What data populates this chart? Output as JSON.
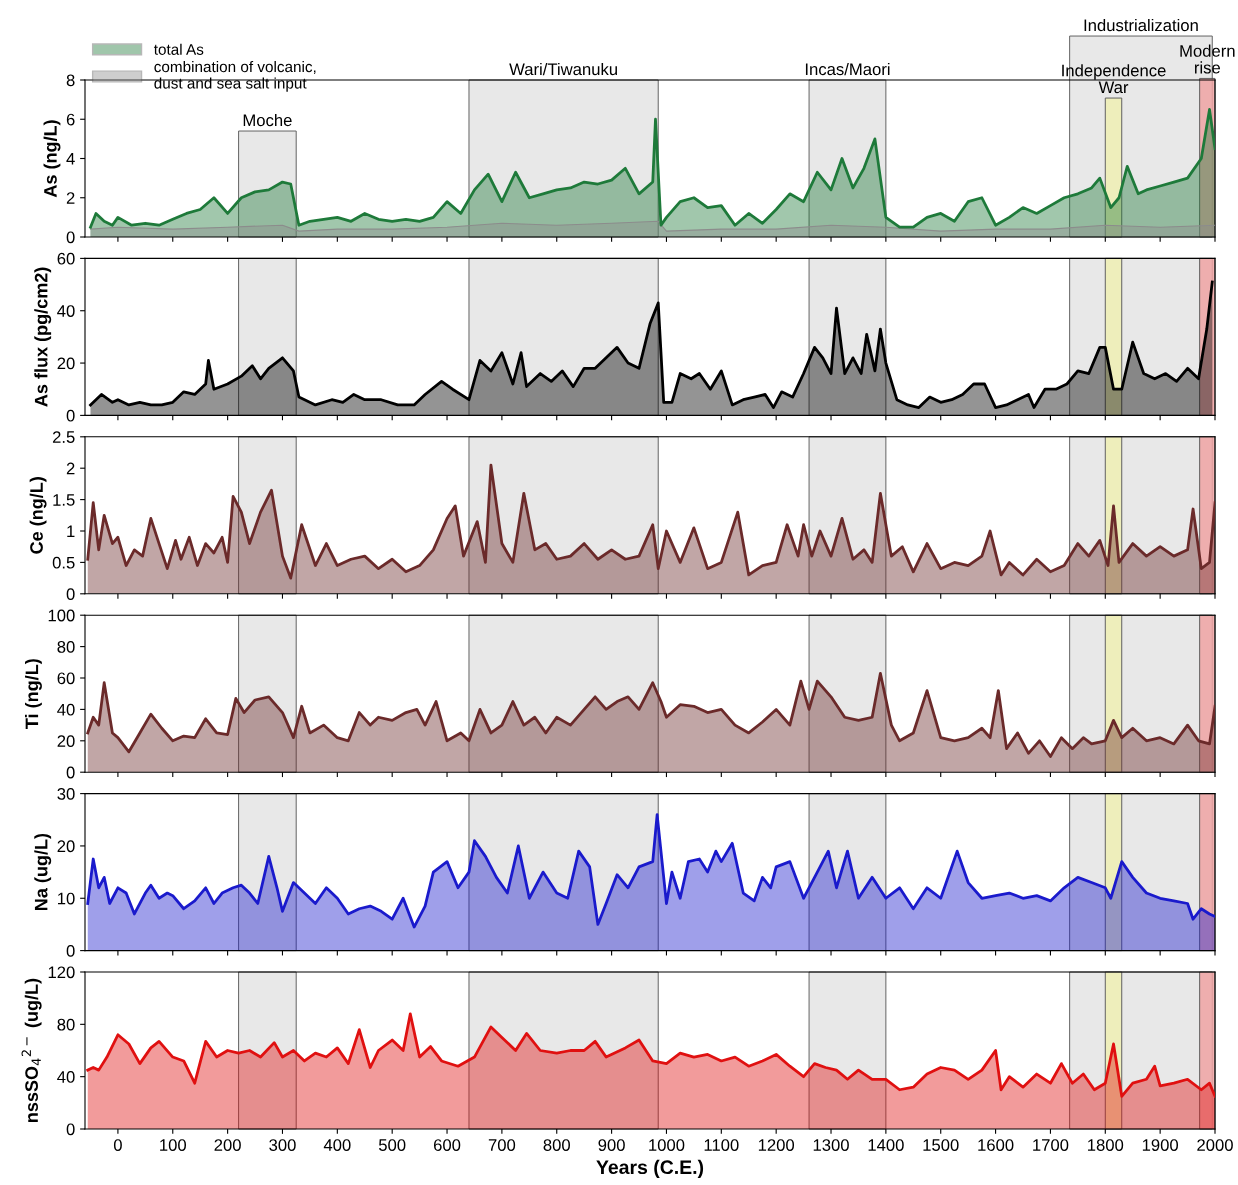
{
  "chart_data": [
    {
      "type": "area",
      "ylabel": "As (ng/L)",
      "xlim": [
        -60,
        2000
      ],
      "xticks": [
        0,
        100,
        200,
        300,
        400,
        500,
        600,
        700,
        800,
        900,
        1000,
        1100,
        1200,
        1300,
        1400,
        1500,
        1600,
        1700,
        1800,
        1900,
        2000
      ],
      "ylim": [
        0,
        8
      ],
      "yticks": [
        0,
        2,
        4,
        6,
        8
      ],
      "tick_labels": "y",
      "legend": "top left",
      "series": [
        {
          "name": "total As",
          "color": "#1e7a3a",
          "x": [
            -50,
            -40,
            -25,
            -10,
            0,
            25,
            50,
            75,
            100,
            125,
            150,
            175,
            200,
            225,
            250,
            275,
            300,
            315,
            330,
            350,
            375,
            400,
            425,
            450,
            475,
            500,
            525,
            550,
            575,
            600,
            625,
            650,
            675,
            700,
            725,
            750,
            775,
            800,
            825,
            850,
            875,
            900,
            925,
            950,
            975,
            980,
            990,
            1000,
            1025,
            1050,
            1075,
            1100,
            1125,
            1150,
            1175,
            1200,
            1225,
            1250,
            1275,
            1300,
            1320,
            1340,
            1360,
            1380,
            1400,
            1425,
            1450,
            1475,
            1500,
            1525,
            1550,
            1575,
            1600,
            1625,
            1650,
            1675,
            1700,
            1725,
            1750,
            1775,
            1790,
            1810,
            1825,
            1840,
            1860,
            1875,
            1900,
            1925,
            1950,
            1975,
            1990,
            2000
          ],
          "values": [
            0.5,
            1.2,
            0.8,
            0.6,
            1.0,
            0.6,
            0.7,
            0.6,
            0.9,
            1.2,
            1.4,
            2.0,
            1.2,
            2.0,
            2.3,
            2.4,
            2.8,
            2.7,
            0.6,
            0.8,
            0.9,
            1.0,
            0.8,
            1.2,
            0.9,
            0.8,
            0.9,
            0.8,
            1.0,
            1.8,
            1.2,
            2.4,
            3.2,
            1.8,
            3.3,
            2.0,
            2.2,
            2.4,
            2.5,
            2.8,
            2.7,
            2.9,
            3.5,
            2.2,
            2.8,
            6.0,
            0.6,
            1.0,
            1.8,
            2.0,
            1.5,
            1.6,
            0.6,
            1.2,
            0.7,
            1.4,
            2.2,
            1.8,
            3.3,
            2.4,
            4.0,
            2.5,
            3.5,
            5.0,
            1.0,
            0.5,
            0.5,
            1.0,
            1.2,
            0.8,
            1.8,
            2.0,
            0.6,
            1.0,
            1.5,
            1.2,
            1.6,
            2.0,
            2.2,
            2.5,
            3.0,
            1.5,
            2.0,
            3.6,
            2.2,
            2.4,
            2.6,
            2.8,
            3.0,
            4.0,
            6.5,
            4.5
          ]
        },
        {
          "name": "combination of volcanic,\ndust and sea salt input",
          "color": "#8c8c8c",
          "x": [
            -50,
            0,
            100,
            200,
            300,
            330,
            400,
            500,
            600,
            700,
            800,
            900,
            985,
            1000,
            1100,
            1200,
            1300,
            1400,
            1500,
            1600,
            1700,
            1800,
            1900,
            2000
          ],
          "values": [
            0.4,
            0.5,
            0.4,
            0.5,
            0.6,
            0.3,
            0.4,
            0.4,
            0.5,
            0.7,
            0.6,
            0.7,
            0.8,
            0.3,
            0.4,
            0.4,
            0.6,
            0.5,
            0.3,
            0.4,
            0.4,
            0.6,
            0.5,
            0.6
          ]
        }
      ],
      "bands": [
        {
          "axis": "x",
          "from": 220,
          "to": 325,
          "label": "Moche",
          "color": "#e4e4e4"
        },
        {
          "axis": "x",
          "from": 640,
          "to": 985,
          "label": "Wari/Tiwanuku",
          "color": "#e4e4e4"
        },
        {
          "axis": "x",
          "from": 1260,
          "to": 1400,
          "label": "Incas/Maori",
          "color": "#e4e4e4"
        },
        {
          "axis": "x",
          "from": 1735,
          "to": 1995,
          "label": "Industrialization",
          "color": "#e4e4e4"
        },
        {
          "axis": "x",
          "from": 1800,
          "to": 1830,
          "label": "Independence\nWar",
          "color": "#f0f0b4"
        },
        {
          "axis": "x",
          "from": 1972,
          "to": 2000,
          "label": "Modern\nrise",
          "color": "#f0a4a4"
        }
      ]
    },
    {
      "type": "area",
      "ylabel": "As flux (pg/cm2)",
      "xlim": [
        -60,
        2000
      ],
      "xticks": [
        0,
        100,
        200,
        300,
        400,
        500,
        600,
        700,
        800,
        900,
        1000,
        1100,
        1200,
        1300,
        1400,
        1500,
        1600,
        1700,
        1800,
        1900,
        2000
      ],
      "ylim": [
        0,
        60
      ],
      "yticks": [
        0,
        20,
        40,
        60
      ],
      "tick_labels": "y",
      "series": [
        {
          "color": "#000000",
          "x": [
            -50,
            -30,
            -10,
            0,
            20,
            40,
            60,
            80,
            100,
            120,
            140,
            160,
            165,
            175,
            200,
            225,
            245,
            260,
            275,
            300,
            320,
            330,
            360,
            390,
            410,
            430,
            450,
            480,
            510,
            540,
            560,
            590,
            610,
            640,
            660,
            680,
            700,
            720,
            735,
            745,
            770,
            790,
            810,
            830,
            850,
            870,
            890,
            910,
            930,
            950,
            970,
            985,
            995,
            1010,
            1025,
            1045,
            1060,
            1080,
            1100,
            1120,
            1140,
            1160,
            1180,
            1195,
            1210,
            1230,
            1250,
            1270,
            1285,
            1300,
            1310,
            1325,
            1340,
            1355,
            1365,
            1380,
            1390,
            1400,
            1420,
            1440,
            1460,
            1480,
            1500,
            1520,
            1540,
            1560,
            1580,
            1600,
            1620,
            1640,
            1660,
            1670,
            1690,
            1710,
            1730,
            1750,
            1770,
            1790,
            1800,
            1815,
            1830,
            1850,
            1870,
            1890,
            1910,
            1930,
            1950,
            1970,
            1985,
            1995
          ],
          "values": [
            4,
            8,
            5,
            6,
            4,
            5,
            4,
            4,
            5,
            9,
            8,
            12,
            21,
            10,
            12,
            15,
            19,
            14,
            18,
            22,
            17,
            7,
            4,
            6,
            5,
            8,
            6,
            6,
            4,
            4,
            8,
            13,
            10,
            6,
            21,
            17,
            24,
            12,
            24,
            11,
            16,
            13,
            17,
            11,
            18,
            18,
            22,
            26,
            20,
            18,
            35,
            43,
            5,
            5,
            16,
            14,
            16,
            10,
            17,
            4,
            6,
            7,
            8,
            3,
            9,
            7,
            16,
            26,
            22,
            16,
            41,
            16,
            22,
            16,
            31,
            17,
            33,
            20,
            6,
            4,
            3,
            7,
            5,
            6,
            8,
            12,
            12,
            3,
            4,
            6,
            8,
            3,
            10,
            10,
            12,
            17,
            16,
            26,
            26,
            10,
            10,
            28,
            16,
            14,
            16,
            13,
            18,
            14,
            33,
            51
          ]
        }
      ],
      "bands": [
        {
          "axis": "x",
          "from": 220,
          "to": 325,
          "color": "#e4e4e4"
        },
        {
          "axis": "x",
          "from": 640,
          "to": 985,
          "color": "#e4e4e4"
        },
        {
          "axis": "x",
          "from": 1260,
          "to": 1400,
          "color": "#e4e4e4"
        },
        {
          "axis": "x",
          "from": 1735,
          "to": 1995,
          "color": "#e4e4e4"
        },
        {
          "axis": "x",
          "from": 1800,
          "to": 1830,
          "color": "#f0f0b4"
        },
        {
          "axis": "x",
          "from": 1972,
          "to": 2000,
          "color": "#f0a4a4"
        }
      ]
    },
    {
      "type": "area",
      "ylabel": "Ce (ng/L)",
      "xlim": [
        -60,
        2000
      ],
      "xticks": [
        0,
        100,
        200,
        300,
        400,
        500,
        600,
        700,
        800,
        900,
        1000,
        1100,
        1200,
        1300,
        1400,
        1500,
        1600,
        1700,
        1800,
        1900,
        2000
      ],
      "ylim": [
        0,
        2.5
      ],
      "yticks": [
        0,
        0.5,
        1,
        1.5,
        2,
        2.5
      ],
      "tick_labels": "y",
      "series": [
        {
          "color": "#6b2a2a",
          "x": [
            -55,
            -45,
            -35,
            -25,
            -10,
            0,
            15,
            30,
            45,
            60,
            75,
            90,
            105,
            115,
            130,
            145,
            160,
            175,
            190,
            200,
            210,
            225,
            240,
            260,
            280,
            300,
            315,
            335,
            360,
            380,
            400,
            425,
            450,
            475,
            500,
            525,
            550,
            575,
            600,
            615,
            630,
            655,
            670,
            680,
            700,
            720,
            740,
            760,
            780,
            800,
            825,
            850,
            875,
            900,
            925,
            950,
            975,
            985,
            1000,
            1025,
            1050,
            1075,
            1100,
            1130,
            1150,
            1175,
            1200,
            1220,
            1240,
            1250,
            1265,
            1280,
            1300,
            1320,
            1340,
            1360,
            1375,
            1390,
            1410,
            1430,
            1450,
            1475,
            1500,
            1525,
            1550,
            1575,
            1590,
            1610,
            1625,
            1650,
            1675,
            1700,
            1725,
            1750,
            1770,
            1790,
            1805,
            1815,
            1825,
            1850,
            1875,
            1900,
            1925,
            1950,
            1960,
            1975,
            1990,
            2000
          ],
          "values": [
            0.55,
            1.45,
            0.7,
            1.25,
            0.8,
            0.9,
            0.45,
            0.7,
            0.6,
            1.2,
            0.8,
            0.4,
            0.85,
            0.55,
            0.9,
            0.45,
            0.8,
            0.65,
            0.9,
            0.5,
            1.55,
            1.3,
            0.8,
            1.3,
            1.65,
            0.6,
            0.25,
            1.1,
            0.45,
            0.8,
            0.45,
            0.55,
            0.6,
            0.4,
            0.55,
            0.35,
            0.45,
            0.7,
            1.2,
            1.4,
            0.6,
            1.15,
            0.5,
            2.05,
            0.8,
            0.5,
            1.6,
            0.7,
            0.8,
            0.55,
            0.6,
            0.8,
            0.55,
            0.7,
            0.55,
            0.6,
            1.1,
            0.4,
            1.0,
            0.5,
            1.05,
            0.4,
            0.5,
            1.3,
            0.3,
            0.45,
            0.5,
            1.1,
            0.6,
            1.1,
            0.6,
            1.0,
            0.6,
            1.2,
            0.55,
            0.7,
            0.5,
            1.6,
            0.6,
            0.75,
            0.35,
            0.8,
            0.4,
            0.5,
            0.45,
            0.6,
            1.0,
            0.3,
            0.5,
            0.3,
            0.55,
            0.35,
            0.45,
            0.8,
            0.6,
            0.85,
            0.45,
            1.4,
            0.5,
            0.8,
            0.6,
            0.75,
            0.6,
            0.7,
            1.35,
            0.4,
            0.5,
            1.45
          ]
        }
      ],
      "bands": [
        {
          "axis": "x",
          "from": 220,
          "to": 325,
          "color": "#e4e4e4"
        },
        {
          "axis": "x",
          "from": 640,
          "to": 985,
          "color": "#e4e4e4"
        },
        {
          "axis": "x",
          "from": 1260,
          "to": 1400,
          "color": "#e4e4e4"
        },
        {
          "axis": "x",
          "from": 1735,
          "to": 1995,
          "color": "#e4e4e4"
        },
        {
          "axis": "x",
          "from": 1800,
          "to": 1830,
          "color": "#f0f0b4"
        },
        {
          "axis": "x",
          "from": 1972,
          "to": 2000,
          "color": "#f0a4a4"
        }
      ]
    },
    {
      "type": "area",
      "ylabel": "Ti (ng/L)",
      "xlim": [
        -60,
        2000
      ],
      "xticks": [
        0,
        100,
        200,
        300,
        400,
        500,
        600,
        700,
        800,
        900,
        1000,
        1100,
        1200,
        1300,
        1400,
        1500,
        1600,
        1700,
        1800,
        1900,
        2000
      ],
      "ylim": [
        0,
        100
      ],
      "yticks": [
        0,
        20,
        40,
        60,
        80,
        100
      ],
      "tick_labels": "y",
      "series": [
        {
          "color": "#6b2a2a",
          "x": [
            -55,
            -45,
            -35,
            -25,
            -10,
            0,
            20,
            40,
            60,
            80,
            100,
            120,
            140,
            160,
            180,
            200,
            215,
            230,
            250,
            275,
            300,
            320,
            335,
            350,
            375,
            400,
            420,
            440,
            460,
            475,
            500,
            525,
            545,
            560,
            580,
            600,
            625,
            640,
            660,
            680,
            700,
            720,
            740,
            760,
            780,
            800,
            825,
            850,
            870,
            890,
            910,
            930,
            950,
            975,
            990,
            1000,
            1025,
            1050,
            1075,
            1100,
            1125,
            1150,
            1175,
            1200,
            1225,
            1245,
            1260,
            1275,
            1300,
            1325,
            1350,
            1375,
            1390,
            1410,
            1425,
            1450,
            1475,
            1500,
            1525,
            1550,
            1575,
            1590,
            1605,
            1620,
            1640,
            1660,
            1680,
            1700,
            1720,
            1740,
            1760,
            1775,
            1800,
            1815,
            1830,
            1850,
            1875,
            1900,
            1925,
            1950,
            1970,
            1990,
            2000
          ],
          "values": [
            25,
            35,
            30,
            57,
            25,
            22,
            13,
            25,
            37,
            28,
            20,
            23,
            22,
            34,
            25,
            24,
            47,
            38,
            46,
            48,
            38,
            22,
            42,
            25,
            30,
            22,
            20,
            38,
            30,
            35,
            33,
            38,
            40,
            30,
            45,
            20,
            25,
            20,
            40,
            25,
            30,
            45,
            30,
            35,
            25,
            35,
            30,
            40,
            48,
            40,
            45,
            48,
            40,
            57,
            45,
            35,
            43,
            42,
            38,
            40,
            30,
            25,
            32,
            40,
            30,
            58,
            40,
            58,
            48,
            35,
            33,
            35,
            63,
            30,
            20,
            25,
            52,
            22,
            20,
            22,
            28,
            22,
            52,
            15,
            25,
            12,
            20,
            10,
            22,
            15,
            22,
            18,
            20,
            33,
            22,
            28,
            20,
            22,
            18,
            30,
            20,
            18,
            42
          ]
        }
      ],
      "bands": [
        {
          "axis": "x",
          "from": 220,
          "to": 325,
          "color": "#e4e4e4"
        },
        {
          "axis": "x",
          "from": 640,
          "to": 985,
          "color": "#e4e4e4"
        },
        {
          "axis": "x",
          "from": 1260,
          "to": 1400,
          "color": "#e4e4e4"
        },
        {
          "axis": "x",
          "from": 1735,
          "to": 1995,
          "color": "#e4e4e4"
        },
        {
          "axis": "x",
          "from": 1800,
          "to": 1830,
          "color": "#f0f0b4"
        },
        {
          "axis": "x",
          "from": 1972,
          "to": 2000,
          "color": "#f0a4a4"
        }
      ]
    },
    {
      "type": "area",
      "ylabel": "Na (ug/L)",
      "xlim": [
        -60,
        2000
      ],
      "xticks": [
        0,
        100,
        200,
        300,
        400,
        500,
        600,
        700,
        800,
        900,
        1000,
        1100,
        1200,
        1300,
        1400,
        1500,
        1600,
        1700,
        1800,
        1900,
        2000
      ],
      "ylim": [
        0,
        30
      ],
      "yticks": [
        0,
        10,
        20,
        30
      ],
      "tick_labels": "y",
      "series": [
        {
          "color": "#1a1acc",
          "x": [
            -55,
            -45,
            -35,
            -25,
            -15,
            0,
            15,
            30,
            50,
            60,
            75,
            90,
            100,
            120,
            140,
            160,
            175,
            190,
            210,
            225,
            240,
            255,
            275,
            290,
            300,
            320,
            340,
            360,
            380,
            400,
            420,
            440,
            460,
            480,
            500,
            520,
            540,
            560,
            575,
            600,
            620,
            640,
            650,
            670,
            690,
            710,
            730,
            750,
            775,
            800,
            820,
            840,
            860,
            875,
            890,
            910,
            930,
            950,
            975,
            983,
            1000,
            1010,
            1025,
            1040,
            1060,
            1075,
            1090,
            1100,
            1120,
            1140,
            1160,
            1175,
            1190,
            1200,
            1225,
            1250,
            1275,
            1295,
            1310,
            1330,
            1350,
            1375,
            1400,
            1425,
            1450,
            1475,
            1500,
            1530,
            1550,
            1575,
            1600,
            1625,
            1650,
            1675,
            1700,
            1725,
            1750,
            1775,
            1800,
            1810,
            1830,
            1850,
            1875,
            1900,
            1925,
            1950,
            1960,
            1975,
            1990,
            2000
          ],
          "values": [
            9,
            17.5,
            12,
            14,
            9,
            12,
            11,
            7,
            11,
            12.5,
            10,
            11,
            10.5,
            8,
            9.5,
            12,
            9,
            11,
            12,
            12.5,
            11,
            9,
            18,
            12,
            7.5,
            13,
            11,
            9,
            12,
            10,
            7,
            8,
            8.5,
            7.5,
            6,
            10,
            4.5,
            8.5,
            15,
            17,
            12,
            15,
            21,
            18,
            14,
            11,
            20,
            10,
            15,
            11,
            10,
            19,
            16,
            5,
            9,
            14.5,
            12,
            16,
            17,
            26,
            9,
            15,
            10,
            17,
            17.5,
            15,
            19,
            17,
            20.5,
            11,
            9.5,
            14,
            12,
            16,
            17,
            10,
            15,
            19,
            12,
            19,
            10,
            14,
            10,
            12,
            8,
            12,
            10,
            19,
            13,
            10,
            10.5,
            11,
            10,
            10.5,
            9.5,
            12,
            14,
            13,
            12,
            10,
            17,
            14,
            11,
            10,
            9.5,
            9,
            6,
            8,
            7,
            6.5
          ]
        }
      ],
      "bands": [
        {
          "axis": "x",
          "from": 220,
          "to": 325,
          "color": "#e4e4e4"
        },
        {
          "axis": "x",
          "from": 640,
          "to": 985,
          "color": "#e4e4e4"
        },
        {
          "axis": "x",
          "from": 1260,
          "to": 1400,
          "color": "#e4e4e4"
        },
        {
          "axis": "x",
          "from": 1735,
          "to": 1995,
          "color": "#e4e4e4"
        },
        {
          "axis": "x",
          "from": 1800,
          "to": 1830,
          "color": "#f0f0b4"
        },
        {
          "axis": "x",
          "from": 1972,
          "to": 2000,
          "color": "#f0a4a4"
        }
      ]
    },
    {
      "type": "area",
      "ylabel": "nssSO$_{4}$$^{2−}$ (ug/L)",
      "xlabel": "Years (C.E.)",
      "xlim": [
        -60,
        2000
      ],
      "xticks": [
        0,
        100,
        200,
        300,
        400,
        500,
        600,
        700,
        800,
        900,
        1000,
        1100,
        1200,
        1300,
        1400,
        1500,
        1600,
        1700,
        1800,
        1900,
        2000
      ],
      "ylim": [
        0,
        120
      ],
      "yticks": [
        0,
        40,
        80,
        120
      ],
      "series": [
        {
          "color": "#e01010",
          "x": [
            -55,
            -45,
            -35,
            -20,
            0,
            20,
            40,
            60,
            75,
            100,
            120,
            140,
            160,
            180,
            200,
            220,
            240,
            260,
            285,
            300,
            320,
            340,
            360,
            380,
            400,
            420,
            440,
            460,
            475,
            500,
            520,
            533,
            550,
            570,
            590,
            620,
            650,
            680,
            700,
            725,
            745,
            770,
            800,
            825,
            850,
            870,
            890,
            925,
            950,
            975,
            1000,
            1025,
            1050,
            1075,
            1100,
            1125,
            1150,
            1175,
            1200,
            1225,
            1250,
            1270,
            1290,
            1310,
            1330,
            1350,
            1375,
            1400,
            1425,
            1450,
            1475,
            1500,
            1525,
            1550,
            1575,
            1600,
            1610,
            1625,
            1650,
            1675,
            1700,
            1720,
            1740,
            1760,
            1780,
            1800,
            1815,
            1830,
            1850,
            1875,
            1890,
            1900,
            1925,
            1950,
            1975,
            1990,
            2000
          ],
          "values": [
            45,
            47,
            45,
            55,
            72,
            65,
            50,
            62,
            67,
            55,
            52,
            35,
            67,
            55,
            60,
            58,
            60,
            55,
            66,
            55,
            60,
            52,
            58,
            55,
            62,
            50,
            76,
            47,
            60,
            68,
            60,
            88,
            55,
            63,
            52,
            48,
            55,
            78,
            70,
            60,
            73,
            60,
            58,
            60,
            60,
            67,
            55,
            62,
            68,
            52,
            50,
            58,
            55,
            57,
            52,
            55,
            48,
            52,
            57,
            48,
            40,
            50,
            47,
            45,
            38,
            45,
            38,
            38,
            30,
            32,
            42,
            47,
            45,
            38,
            45,
            60,
            30,
            40,
            32,
            42,
            35,
            50,
            35,
            42,
            30,
            35,
            65,
            25,
            35,
            38,
            48,
            33,
            35,
            38,
            30,
            35,
            25
          ]
        }
      ],
      "bands": [
        {
          "axis": "x",
          "from": 220,
          "to": 325,
          "color": "#e4e4e4"
        },
        {
          "axis": "x",
          "from": 640,
          "to": 985,
          "color": "#e4e4e4"
        },
        {
          "axis": "x",
          "from": 1260,
          "to": 1400,
          "color": "#e4e4e4"
        },
        {
          "axis": "x",
          "from": 1735,
          "to": 1995,
          "color": "#e4e4e4"
        },
        {
          "axis": "x",
          "from": 1800,
          "to": 1830,
          "color": "#f0f0b4"
        },
        {
          "axis": "x",
          "from": 1972,
          "to": 2000,
          "color": "#f0a4a4"
        }
      ]
    }
  ]
}
